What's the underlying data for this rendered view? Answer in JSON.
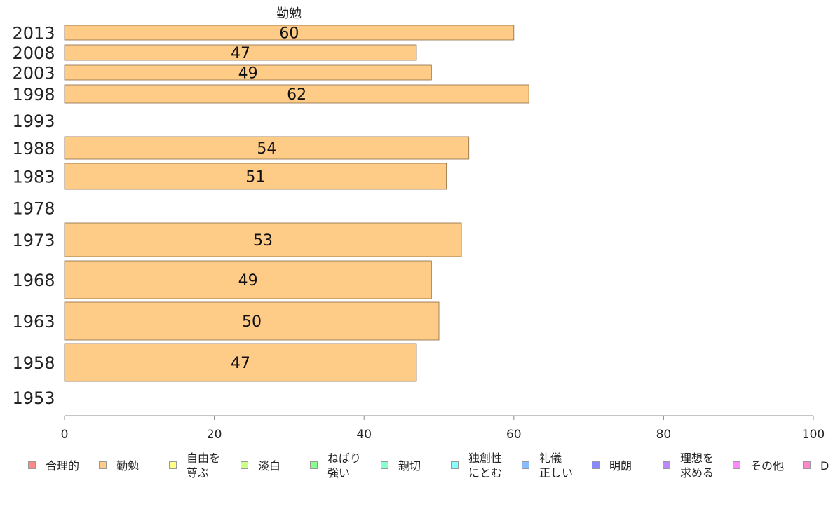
{
  "chart_data": {
    "type": "bar",
    "orientation": "horizontal",
    "title": "勤勉",
    "categories": [
      "2013",
      "2008",
      "2003",
      "1998",
      "1993",
      "1988",
      "1983",
      "1978",
      "1973",
      "1968",
      "1963",
      "1958",
      "1953"
    ],
    "series": [
      {
        "name": "勤勉",
        "color": "#ffcc88",
        "values": [
          60,
          47,
          49,
          62,
          null,
          54,
          51,
          null,
          53,
          49,
          50,
          47,
          null
        ]
      }
    ],
    "xlim": [
      0,
      100
    ],
    "xticks": [
      0,
      20,
      40,
      60,
      80,
      100
    ],
    "legend_position": "bottom",
    "legend": [
      {
        "label": "合理的",
        "color": "#ff8888"
      },
      {
        "label": "勤勉",
        "color": "#ffcc88"
      },
      {
        "label": "自由を\n尊ぶ",
        "color": "#ffff88"
      },
      {
        "label": "淡白",
        "color": "#ccff88"
      },
      {
        "label": "ねばり\n強い",
        "color": "#88ff88"
      },
      {
        "label": "親切",
        "color": "#88ffcc"
      },
      {
        "label": "独創性\nにとむ",
        "color": "#88ffff"
      },
      {
        "label": "礼儀\n正しい",
        "color": "#88bbff"
      },
      {
        "label": "明朗",
        "color": "#8888ff"
      },
      {
        "label": "理想を\n求める",
        "color": "#bb88ff"
      },
      {
        "label": "その他",
        "color": "#ff88ff"
      },
      {
        "label": "D",
        "color": "#ff88cc"
      }
    ]
  }
}
